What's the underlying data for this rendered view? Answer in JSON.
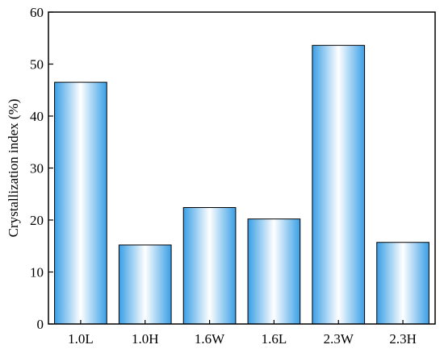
{
  "chart_data": {
    "type": "bar",
    "title": "",
    "xlabel": "",
    "ylabel": "Crystallization index (%)",
    "categories": [
      "1.0L",
      "1.0H",
      "1.6W",
      "1.6L",
      "2.3W",
      "2.3H"
    ],
    "values": [
      46.5,
      15.2,
      22.4,
      20.2,
      53.6,
      15.7
    ],
    "ylim": [
      0,
      60
    ],
    "yticks": [
      0,
      10,
      20,
      30,
      40,
      50,
      60
    ],
    "grid": false,
    "legend": "none",
    "colors": {
      "bar_edge": "#3a9fe6",
      "bar_center": "#ffffff",
      "bar_outline": "#000000",
      "axis": "#000000"
    }
  }
}
